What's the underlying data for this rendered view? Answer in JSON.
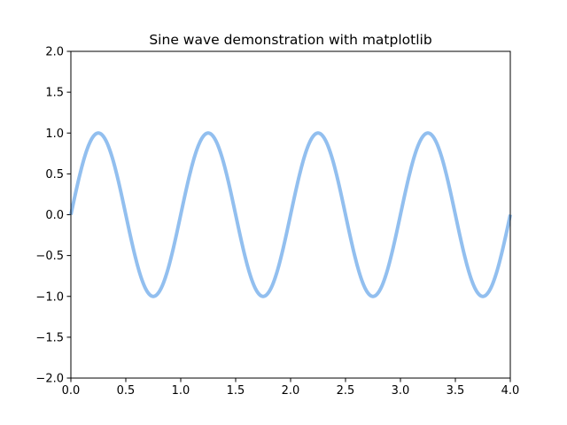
{
  "chart_data": {
    "type": "line",
    "title": "Sine wave demonstration with matplotlib",
    "xlabel": "",
    "ylabel": "",
    "xlim": [
      0.0,
      4.0
    ],
    "ylim": [
      -2.0,
      2.0
    ],
    "grid": false,
    "x_ticks": [
      0.0,
      0.5,
      1.0,
      1.5,
      2.0,
      2.5,
      3.0,
      3.5,
      4.0
    ],
    "x_tick_labels": [
      "0.0",
      "0.5",
      "1.0",
      "1.5",
      "2.0",
      "2.5",
      "3.0",
      "3.5",
      "4.0"
    ],
    "y_ticks": [
      -2.0,
      -1.5,
      -1.0,
      -0.5,
      0.0,
      0.5,
      1.0,
      1.5,
      2.0
    ],
    "y_tick_labels": [
      "−2.0",
      "−1.5",
      "−1.0",
      "−0.5",
      "0.0",
      "0.5",
      "1.0",
      "1.5",
      "2.0"
    ],
    "series": [
      {
        "color": "#92bfef",
        "function": "y = sin(2πx)",
        "x": [
          0.0,
          0.125,
          0.25,
          0.375,
          0.5,
          0.625,
          0.75,
          0.875,
          1.0,
          1.125,
          1.25,
          1.375,
          1.5,
          1.625,
          1.75,
          1.875,
          2.0,
          2.125,
          2.25,
          2.375,
          2.5,
          2.625,
          2.75,
          2.875,
          3.0,
          3.125,
          3.25,
          3.375,
          3.5,
          3.625,
          3.75,
          3.875,
          4.0
        ],
        "y": [
          0.0,
          0.707,
          1.0,
          0.707,
          0.0,
          -0.707,
          -1.0,
          -0.707,
          0.0,
          0.707,
          1.0,
          0.707,
          0.0,
          -0.707,
          -1.0,
          -0.707,
          0.0,
          0.707,
          1.0,
          0.707,
          0.0,
          -0.707,
          -1.0,
          -0.707,
          0.0,
          0.707,
          1.0,
          0.707,
          0.0,
          -0.707,
          -1.0,
          -0.707,
          0.0
        ]
      }
    ]
  }
}
